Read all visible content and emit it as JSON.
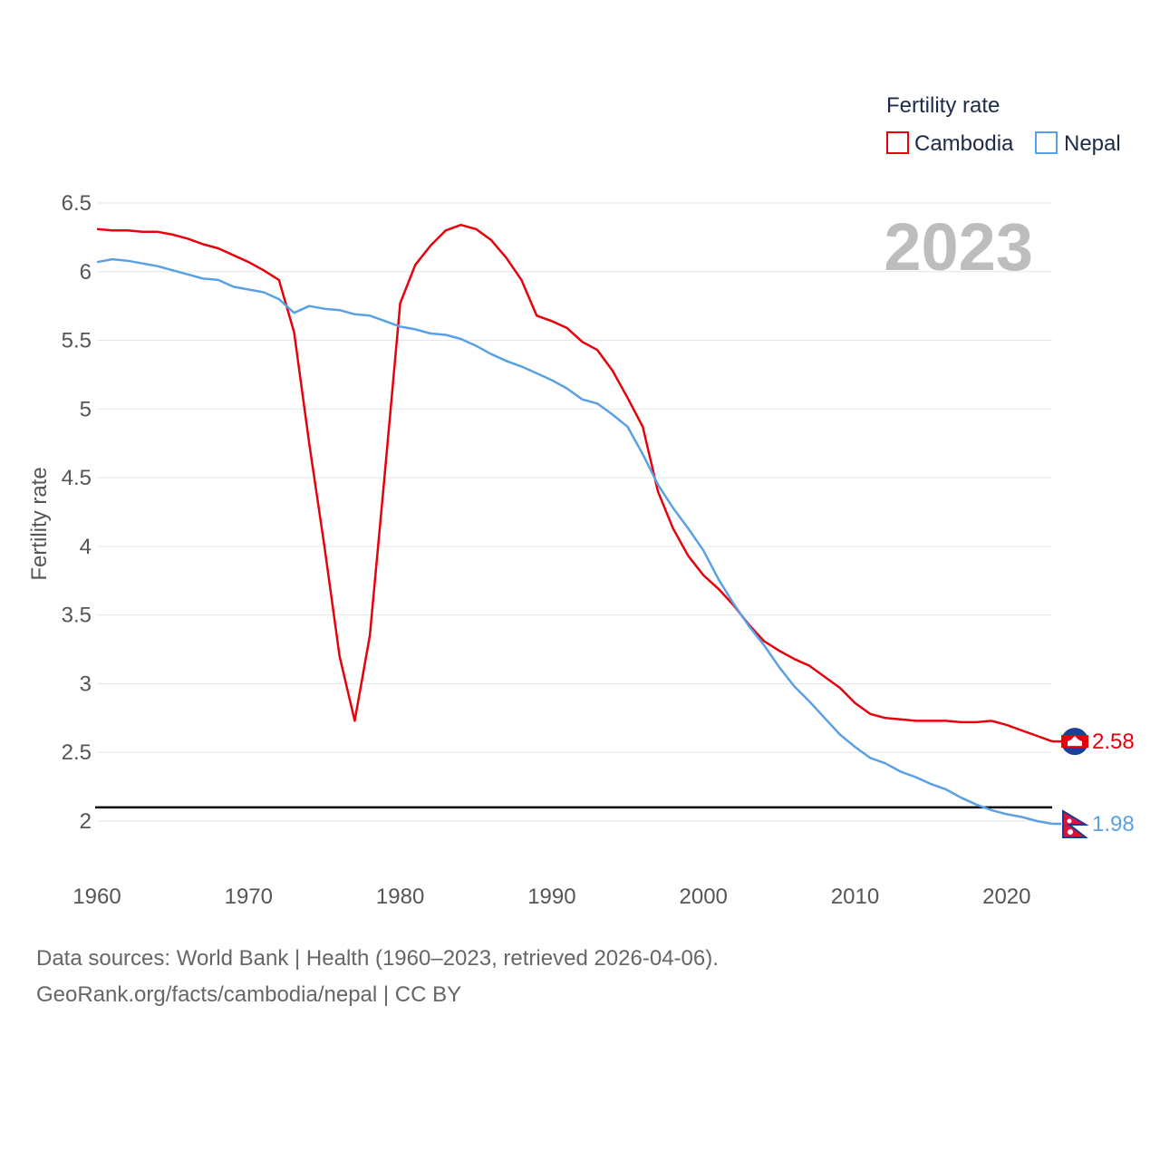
{
  "chart_data": {
    "type": "line",
    "title": "",
    "legend_title": "Fertility rate",
    "legend_position": "top-right",
    "ylabel": "Fertility rate",
    "xlabel": "",
    "watermark_year": "2023",
    "xlim": [
      1960,
      2023
    ],
    "ylim": [
      1.8,
      6.5
    ],
    "yticks": [
      2,
      2.5,
      3,
      3.5,
      4,
      4.5,
      5,
      5.5,
      6,
      6.5
    ],
    "ytick_labels": [
      "2",
      "2.5",
      "3",
      "3.5",
      "4",
      "4.5",
      "5",
      "5.5",
      "6",
      "6.5"
    ],
    "xticks": [
      1960,
      1970,
      1980,
      1990,
      2000,
      2010,
      2020
    ],
    "xtick_labels": [
      "1960",
      "1970",
      "1980",
      "1990",
      "2000",
      "2010",
      "2020"
    ],
    "reference_line": 2.1,
    "x": [
      1960,
      1961,
      1962,
      1963,
      1964,
      1965,
      1966,
      1967,
      1968,
      1969,
      1970,
      1971,
      1972,
      1973,
      1974,
      1975,
      1976,
      1977,
      1978,
      1979,
      1980,
      1981,
      1982,
      1983,
      1984,
      1985,
      1986,
      1987,
      1988,
      1989,
      1990,
      1991,
      1992,
      1993,
      1994,
      1995,
      1996,
      1997,
      1998,
      1999,
      2000,
      2001,
      2002,
      2003,
      2004,
      2005,
      2006,
      2007,
      2008,
      2009,
      2010,
      2011,
      2012,
      2013,
      2014,
      2015,
      2016,
      2017,
      2018,
      2019,
      2020,
      2021,
      2022,
      2023
    ],
    "series": [
      {
        "name": "Cambodia",
        "color": "#e8000b",
        "end_label": "2.58",
        "values": [
          6.31,
          6.3,
          6.3,
          6.29,
          6.29,
          6.27,
          6.24,
          6.2,
          6.17,
          6.12,
          6.07,
          6.01,
          5.94,
          5.56,
          4.75,
          4.0,
          3.2,
          2.73,
          3.35,
          4.55,
          5.77,
          6.05,
          6.19,
          6.3,
          6.34,
          6.31,
          6.23,
          6.1,
          5.94,
          5.68,
          5.64,
          5.59,
          5.49,
          5.43,
          5.28,
          5.08,
          4.87,
          4.4,
          4.13,
          3.93,
          3.79,
          3.69,
          3.57,
          3.43,
          3.31,
          3.24,
          3.18,
          3.13,
          3.05,
          2.97,
          2.86,
          2.78,
          2.75,
          2.74,
          2.73,
          2.73,
          2.73,
          2.72,
          2.72,
          2.73,
          2.7,
          2.66,
          2.62,
          2.58
        ]
      },
      {
        "name": "Nepal",
        "color": "#5aa0e6",
        "end_label": "1.98",
        "values": [
          6.07,
          6.09,
          6.08,
          6.06,
          6.04,
          6.01,
          5.98,
          5.95,
          5.94,
          5.89,
          5.87,
          5.85,
          5.8,
          5.7,
          5.75,
          5.73,
          5.72,
          5.69,
          5.68,
          5.64,
          5.6,
          5.58,
          5.55,
          5.54,
          5.51,
          5.46,
          5.4,
          5.35,
          5.31,
          5.26,
          5.21,
          5.15,
          5.07,
          5.04,
          4.96,
          4.87,
          4.67,
          4.45,
          4.28,
          4.13,
          3.97,
          3.76,
          3.58,
          3.42,
          3.28,
          3.12,
          2.98,
          2.87,
          2.75,
          2.63,
          2.54,
          2.46,
          2.42,
          2.36,
          2.32,
          2.27,
          2.23,
          2.17,
          2.12,
          2.08,
          2.05,
          2.03,
          2.0,
          1.98
        ]
      }
    ]
  },
  "footer": {
    "sources": "Data sources: World Bank | Health (1960–2023, retrieved 2026-04-06).",
    "credit": "GeoRank.org/facts/cambodia/nepal | CC BY"
  }
}
